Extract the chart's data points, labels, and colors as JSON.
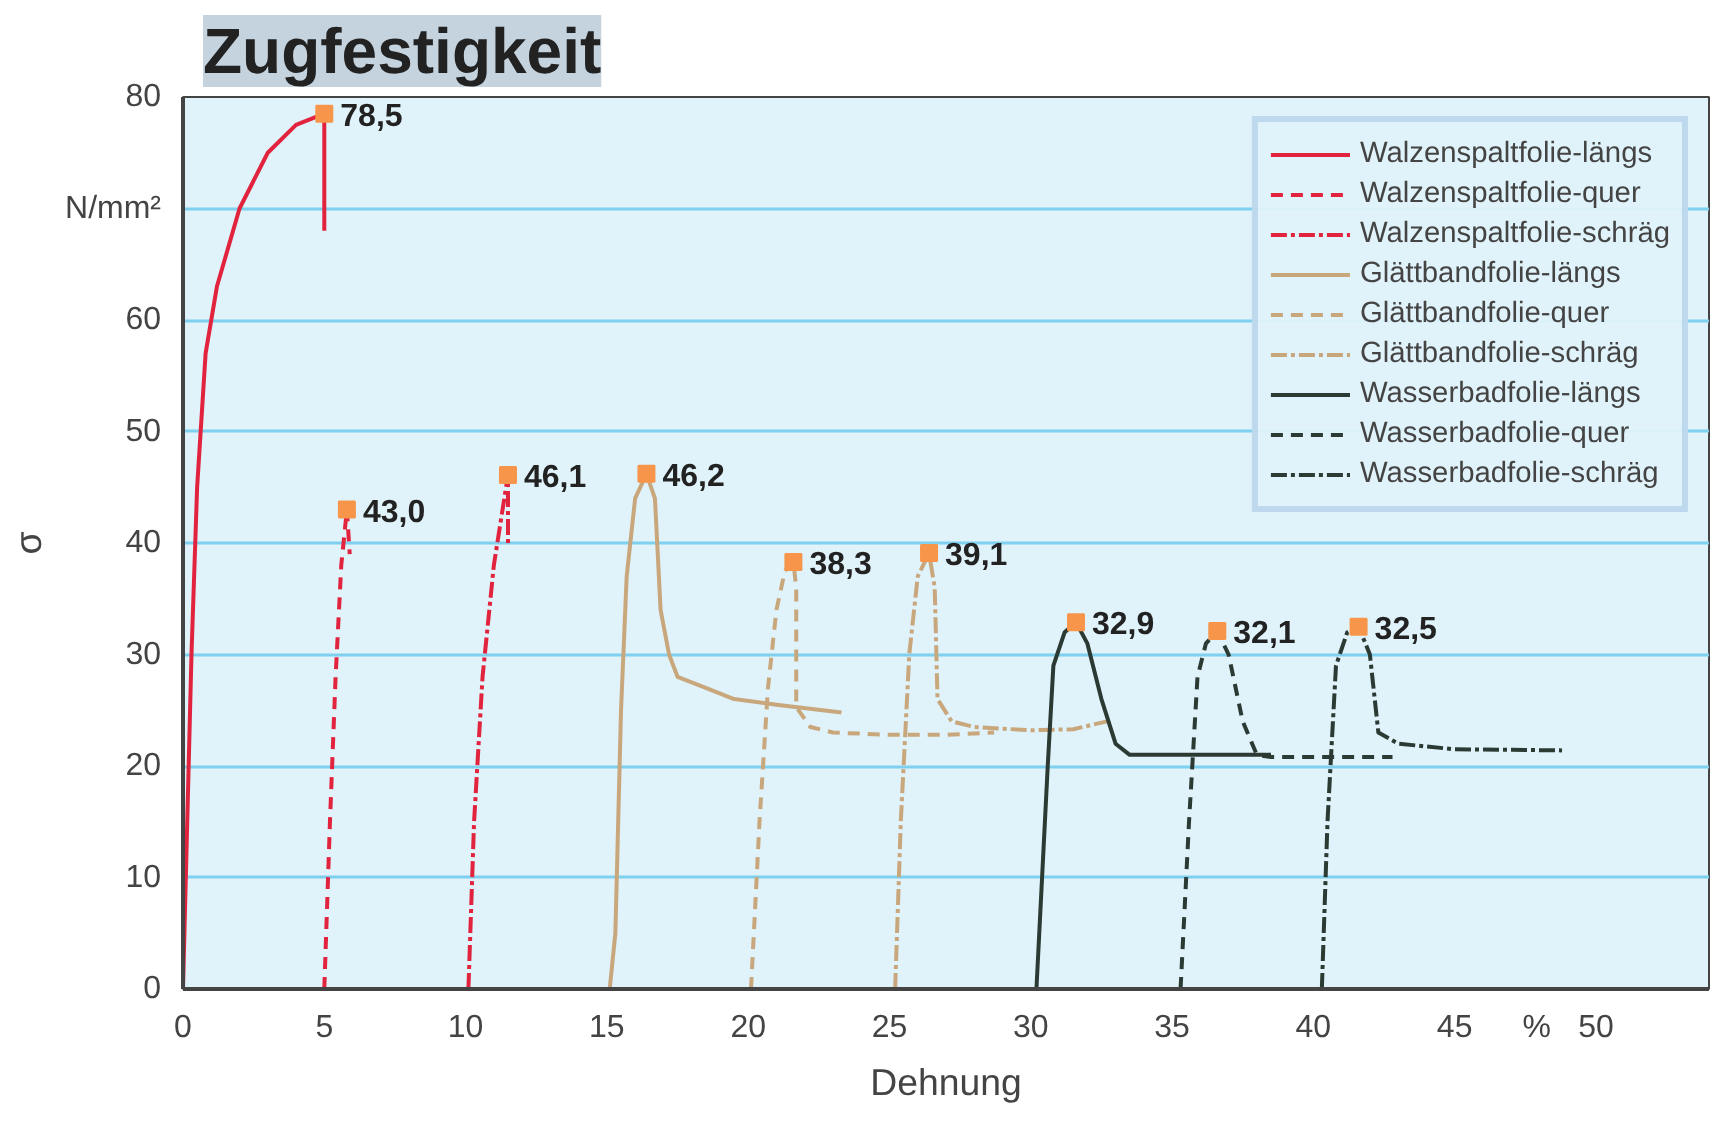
{
  "chart_data": {
    "type": "line",
    "title": "Zugfestigkeit",
    "xlabel": "Dehnung",
    "ylabel": "σ",
    "xlim": [
      0,
      54
    ],
    "ylim": [
      0,
      80
    ],
    "xticks": [
      0,
      5,
      10,
      15,
      20,
      25,
      30,
      35,
      40,
      45,
      {
        "value": 47.9,
        "label": "%"
      },
      50
    ],
    "yticks": [
      0,
      10,
      20,
      30,
      40,
      50,
      60,
      {
        "value": 70,
        "label": "N/mm²"
      },
      80
    ],
    "grid": "y",
    "legend": "top right",
    "marker": "none",
    "series": [
      {
        "name": "Walzenspaltfolie-längs",
        "color": "#e2233e",
        "line_style": "solid",
        "x": [
          0,
          0.3,
          0.5,
          0.8,
          1.2,
          2,
          3,
          4,
          5,
          5
        ],
        "values": [
          0,
          30,
          45,
          57,
          63,
          70,
          75,
          77.5,
          78.5,
          68
        ]
      },
      {
        "name": "Walzenspaltfolie-quer",
        "color": "#e2233e",
        "line_style": "dashed",
        "x": [
          5,
          5.2,
          5.4,
          5.6,
          5.8,
          5.9
        ],
        "values": [
          0,
          15,
          28,
          38,
          43,
          39
        ]
      },
      {
        "name": "Walzenspaltfolie-schräg",
        "color": "#e2233e",
        "line_style": "dashdot",
        "x": [
          10.1,
          10.3,
          10.6,
          11,
          11.5,
          11.5
        ],
        "values": [
          0,
          15,
          28,
          38,
          46.1,
          40
        ]
      },
      {
        "name": "Glättbandfolie-längs",
        "color": "#c9a77c",
        "line_style": "solid",
        "x": [
          15.1,
          15.3,
          15.5,
          15.7,
          16,
          16.4,
          16.7,
          16.9,
          17.2,
          17.5,
          18.5,
          19.5,
          21,
          23.3
        ],
        "values": [
          0,
          5,
          25,
          37,
          44,
          46.2,
          44,
          34,
          30,
          28,
          27,
          26,
          25.5,
          24.8
        ]
      },
      {
        "name": "Glättbandfolie-quer",
        "color": "#c9a77c",
        "line_style": "dashed",
        "x": [
          20.1,
          20.4,
          20.7,
          21,
          21.3,
          21.6,
          21.7,
          21.7,
          22.2,
          23,
          25,
          27,
          28.7
        ],
        "values": [
          0,
          15,
          27,
          34,
          37.5,
          38.3,
          36,
          25.3,
          23.5,
          23,
          22.8,
          22.8,
          23
        ]
      },
      {
        "name": "Glättbandfolie-schräg",
        "color": "#c9a77c",
        "line_style": "dashdot",
        "x": [
          25.2,
          25.4,
          25.7,
          26,
          26.4,
          26.6,
          26.7,
          27.2,
          28,
          30,
          31.5,
          32.7
        ],
        "values": [
          0,
          15,
          30,
          37,
          39.1,
          36,
          26,
          24,
          23.5,
          23.2,
          23.3,
          24
        ]
      },
      {
        "name": "Wasserbadfolie-längs",
        "color": "#2b3a33",
        "line_style": "solid",
        "x": [
          30.2,
          30.3,
          30.6,
          30.8,
          31.2,
          31.6,
          32,
          32.5,
          33,
          33.5,
          35,
          38.5
        ],
        "values": [
          0,
          5,
          20,
          29,
          32,
          32.9,
          31,
          26,
          22,
          21,
          21,
          21
        ]
      },
      {
        "name": "Wasserbadfolie-quer",
        "color": "#2b3a33",
        "line_style": "dashed",
        "x": [
          35.3,
          35.6,
          35.9,
          36.2,
          36.6,
          37,
          37.5,
          38,
          38.5,
          40,
          42.8
        ],
        "values": [
          0,
          15,
          28,
          31,
          32.1,
          30,
          24,
          21,
          20.8,
          20.8,
          20.8
        ]
      },
      {
        "name": "Wasserbadfolie-schräg",
        "color": "#2b3a33",
        "line_style": "dashdot",
        "x": [
          40.3,
          40.5,
          40.8,
          41.2,
          41.6,
          42,
          42.3,
          43,
          45,
          48.8
        ],
        "values": [
          0,
          15,
          29,
          32,
          32.5,
          30,
          23,
          22,
          21.5,
          21.4
        ]
      }
    ],
    "annotations": [
      {
        "text": "78,5",
        "x": 5,
        "y": 78.5
      },
      {
        "text": "43,0",
        "x": 5.8,
        "y": 43
      },
      {
        "text": "46,1",
        "x": 11.5,
        "y": 46.1
      },
      {
        "text": "46,2",
        "x": 16.4,
        "y": 46.2
      },
      {
        "text": "38,3",
        "x": 21.6,
        "y": 38.3
      },
      {
        "text": "39,1",
        "x": 26.4,
        "y": 39.1
      },
      {
        "text": "32,9",
        "x": 31.6,
        "y": 32.9
      },
      {
        "text": "32,1",
        "x": 36.6,
        "y": 32.1
      },
      {
        "text": "32,5",
        "x": 41.6,
        "y": 32.5
      }
    ]
  }
}
